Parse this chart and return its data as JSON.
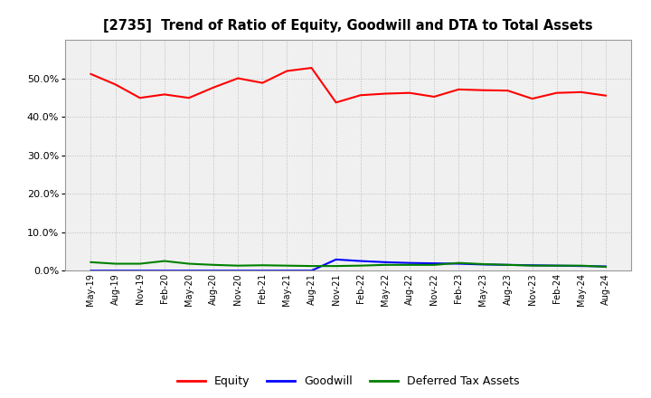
{
  "title": "[2735]  Trend of Ratio of Equity, Goodwill and DTA to Total Assets",
  "x_labels": [
    "May-19",
    "Aug-19",
    "Nov-19",
    "Feb-20",
    "May-20",
    "Aug-20",
    "Nov-20",
    "Feb-21",
    "May-21",
    "Aug-21",
    "Nov-21",
    "Feb-22",
    "May-22",
    "Aug-22",
    "Nov-22",
    "Feb-23",
    "May-23",
    "Aug-23",
    "Nov-23",
    "Feb-24",
    "May-24",
    "Aug-24"
  ],
  "equity": [
    0.511,
    0.484,
    0.449,
    0.458,
    0.449,
    0.476,
    0.5,
    0.488,
    0.519,
    0.527,
    0.437,
    0.456,
    0.46,
    0.462,
    0.452,
    0.471,
    0.469,
    0.468,
    0.447,
    0.462,
    0.464,
    0.455
  ],
  "goodwill": [
    0.0,
    0.0,
    0.0,
    0.0,
    0.0,
    0.0,
    0.0,
    0.0,
    0.0,
    0.0,
    0.029,
    0.025,
    0.022,
    0.02,
    0.019,
    0.018,
    0.016,
    0.015,
    0.014,
    0.013,
    0.012,
    0.011
  ],
  "dta": [
    0.022,
    0.018,
    0.018,
    0.025,
    0.018,
    0.015,
    0.013,
    0.014,
    0.013,
    0.012,
    0.012,
    0.013,
    0.015,
    0.015,
    0.015,
    0.02,
    0.017,
    0.015,
    0.013,
    0.013,
    0.013,
    0.01
  ],
  "equity_color": "#ff0000",
  "goodwill_color": "#0000ff",
  "dta_color": "#008000",
  "ylim": [
    0.0,
    0.6
  ],
  "yticks": [
    0.0,
    0.1,
    0.2,
    0.3,
    0.4,
    0.5
  ],
  "background_color": "#ffffff",
  "plot_bg_color": "#f0f0f0",
  "grid_color": "#bbbbbb",
  "legend_labels": [
    "Equity",
    "Goodwill",
    "Deferred Tax Assets"
  ]
}
